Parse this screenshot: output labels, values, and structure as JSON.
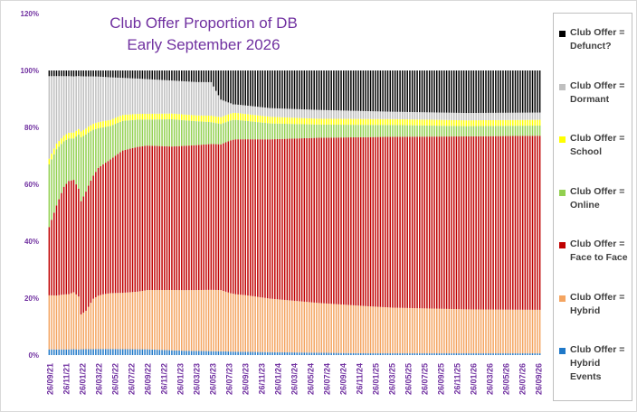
{
  "chart_data": {
    "type": "bar",
    "stacked": true,
    "title_line1": "Club Offer Proportion of DB",
    "title_line2": "Early September 2026",
    "title_color": "#7030a0",
    "ylim": [
      0,
      120
    ],
    "y_ticks": [
      "0%",
      "20%",
      "40%",
      "60%",
      "80%",
      "100%",
      "120%"
    ],
    "x_tick_labels": [
      "26/09/21",
      "26/11/21",
      "26/01/22",
      "26/03/22",
      "26/05/22",
      "26/07/22",
      "26/09/22",
      "26/11/22",
      "26/01/23",
      "26/03/23",
      "26/05/23",
      "26/07/23",
      "26/09/23",
      "26/11/23",
      "26/01/24",
      "26/03/24",
      "26/05/24",
      "26/07/24",
      "26/09/24",
      "26/11/24",
      "26/01/25",
      "26/03/25",
      "26/05/25",
      "26/07/25",
      "26/09/25",
      "26/11/25",
      "26/01/26",
      "26/03/26",
      "26/05/26",
      "26/07/26",
      "26/09/26"
    ],
    "grid": false,
    "legend_position": "right",
    "series": [
      {
        "name": "Club Offer = Hybrid Events",
        "color": "#1f78c8",
        "anchors": [
          [
            0,
            2
          ],
          [
            10,
            2
          ],
          [
            25,
            2
          ],
          [
            40,
            2
          ],
          [
            55,
            1.5
          ],
          [
            90,
            1
          ],
          [
            130,
            0.6
          ],
          [
            200,
            0.6
          ]
        ]
      },
      {
        "name": "Club Offer = Hybrid",
        "color": "#f4a460",
        "anchors": [
          [
            0,
            19
          ],
          [
            8,
            19.5
          ],
          [
            12,
            19
          ],
          [
            13,
            12
          ],
          [
            15,
            13
          ],
          [
            18,
            17
          ],
          [
            22,
            18
          ],
          [
            30,
            19
          ],
          [
            40,
            20.5
          ],
          [
            50,
            21
          ],
          [
            70,
            21
          ],
          [
            80,
            20
          ],
          [
            90,
            18.5
          ],
          [
            110,
            17
          ],
          [
            140,
            15.5
          ],
          [
            170,
            15
          ],
          [
            200,
            15
          ]
        ]
      },
      {
        "name": "Club Offer = Face to Face",
        "color": "#c00000",
        "anchors": [
          [
            0,
            24
          ],
          [
            3,
            32
          ],
          [
            6,
            38
          ],
          [
            8,
            40
          ],
          [
            10,
            38
          ],
          [
            13,
            39
          ],
          [
            16,
            41
          ],
          [
            20,
            42
          ],
          [
            25,
            44
          ],
          [
            30,
            48
          ],
          [
            36,
            50
          ],
          [
            50,
            50
          ],
          [
            70,
            50
          ],
          [
            72,
            52
          ],
          [
            74,
            54
          ],
          [
            76,
            55
          ],
          [
            90,
            55
          ],
          [
            110,
            56.5
          ],
          [
            140,
            58
          ],
          [
            170,
            59
          ],
          [
            200,
            60
          ]
        ]
      },
      {
        "name": "Club Offer = Online",
        "color": "#92d050",
        "anchors": [
          [
            0,
            22
          ],
          [
            3,
            20
          ],
          [
            6,
            16
          ],
          [
            10,
            14
          ],
          [
            13,
            22
          ],
          [
            16,
            18
          ],
          [
            20,
            13
          ],
          [
            25,
            11
          ],
          [
            30,
            10
          ],
          [
            40,
            9
          ],
          [
            50,
            9.5
          ],
          [
            70,
            7
          ],
          [
            75,
            7
          ],
          [
            90,
            5.5
          ],
          [
            110,
            4.5
          ],
          [
            140,
            4
          ],
          [
            170,
            3.5
          ],
          [
            200,
            3.5
          ]
        ]
      },
      {
        "name": "Club Offer = School",
        "color": "#ffff00",
        "anchors": [
          [
            0,
            2
          ],
          [
            30,
            2
          ],
          [
            60,
            2
          ],
          [
            75,
            2.5
          ],
          [
            110,
            2
          ],
          [
            140,
            2
          ],
          [
            200,
            2
          ]
        ]
      },
      {
        "name": "Club Offer = Dormant",
        "color": "#bfbfbf",
        "anchors": [
          [
            0,
            29
          ],
          [
            3,
            24
          ],
          [
            6,
            21
          ],
          [
            10,
            19
          ],
          [
            13,
            19
          ],
          [
            16,
            17
          ],
          [
            20,
            15
          ],
          [
            25,
            14
          ],
          [
            30,
            12.5
          ],
          [
            40,
            12
          ],
          [
            50,
            11.5
          ],
          [
            66,
            11.5
          ],
          [
            70,
            6
          ],
          [
            75,
            3
          ],
          [
            90,
            3
          ],
          [
            110,
            3
          ],
          [
            140,
            2.5
          ],
          [
            170,
            2.5
          ],
          [
            200,
            2.5
          ]
        ]
      },
      {
        "name": "Club Offer = Defunct?",
        "color": "#000000",
        "anchors": [
          [
            0,
            2
          ],
          [
            20,
            2
          ],
          [
            40,
            3
          ],
          [
            60,
            4
          ],
          [
            66,
            4
          ],
          [
            70,
            10
          ],
          [
            75,
            12
          ],
          [
            90,
            13
          ],
          [
            110,
            13.5
          ],
          [
            140,
            14
          ],
          [
            170,
            14.5
          ],
          [
            200,
            14.5
          ]
        ]
      }
    ],
    "num_bars": 201
  }
}
